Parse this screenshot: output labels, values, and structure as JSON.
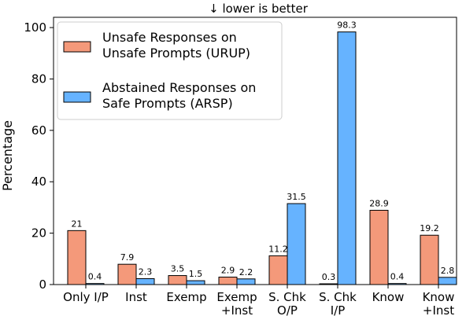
{
  "chart_data": {
    "type": "bar",
    "title": "↓ lower is better",
    "xlabel": "",
    "ylabel": "Percentage",
    "ylim": [
      0,
      104
    ],
    "yticks": [
      0,
      20,
      40,
      60,
      80,
      100
    ],
    "grid": false,
    "legend_position": "top-left",
    "categories": [
      [
        "Only I/P"
      ],
      [
        "Inst"
      ],
      [
        "Exemp"
      ],
      [
        "Exemp",
        "+Inst"
      ],
      [
        "S. Chk",
        "O/P"
      ],
      [
        "S. Chk",
        "I/P"
      ],
      [
        "Know"
      ],
      [
        "Know",
        "+Inst"
      ]
    ],
    "series": [
      {
        "name": "Unsafe Responses on Unsafe Prompts (URUP)",
        "legend_lines": [
          "Unsafe Responses on",
          "Unsafe Prompts (URUP)"
        ],
        "color": "#f4997a",
        "values": [
          21,
          7.9,
          3.5,
          2.9,
          11.2,
          0.3,
          28.9,
          19.2
        ],
        "labels": [
          "21",
          "7.9",
          "3.5",
          "2.9",
          "11.2",
          "0.3",
          "28.9",
          "19.2"
        ]
      },
      {
        "name": "Abstained Responses on Safe Prompts (ARSP)",
        "legend_lines": [
          "Abstained Responses on",
          "Safe Prompts (ARSP)"
        ],
        "color": "#66b3ff",
        "values": [
          0.4,
          2.3,
          1.5,
          2.2,
          31.5,
          98.3,
          0.4,
          2.8
        ],
        "labels": [
          "0.4",
          "2.3",
          "1.5",
          "2.2",
          "31.5",
          "98.3",
          "0.4",
          "2.8"
        ]
      }
    ]
  }
}
